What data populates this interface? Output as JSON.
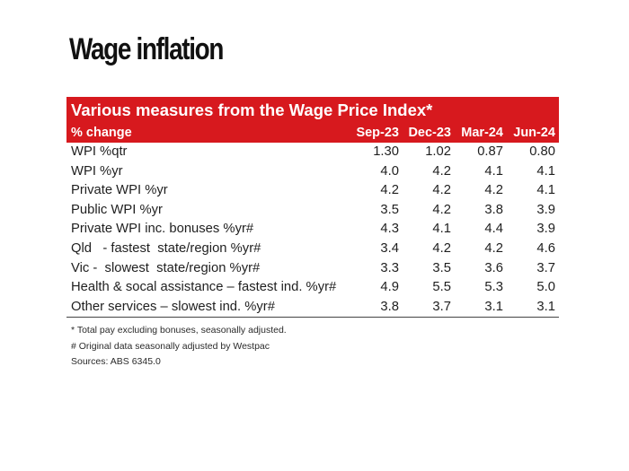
{
  "slide": {
    "title": "Wage inflation"
  },
  "table": {
    "caption": "Various measures from the Wage Price Index*",
    "label_header": "% change",
    "columns": [
      "Sep-23",
      "Dec-23",
      "Mar-24",
      "Jun-24"
    ],
    "rows": [
      {
        "label": "WPI %qtr",
        "values": [
          "1.30",
          "1.02",
          "0.87",
          "0.80"
        ]
      },
      {
        "label": "WPI %yr",
        "values": [
          "4.0",
          "4.2",
          "4.1",
          "4.1"
        ]
      },
      {
        "label": "Private WPI %yr",
        "values": [
          "4.2",
          "4.2",
          "4.2",
          "4.1"
        ]
      },
      {
        "label": "Public WPI %yr",
        "values": [
          "3.5",
          "4.2",
          "3.8",
          "3.9"
        ]
      },
      {
        "label": "Private WPI inc. bonuses %yr#",
        "values": [
          "4.3",
          "4.1",
          "4.4",
          "3.9"
        ]
      },
      {
        "label": "Qld   - fastest  state/region %yr#",
        "values": [
          "3.4",
          "4.2",
          "4.2",
          "4.6"
        ]
      },
      {
        "label": "Vic -  slowest  state/region %yr#",
        "values": [
          "3.3",
          "3.5",
          "3.6",
          "3.7"
        ]
      },
      {
        "label": "Health & socal assistance – fastest ind. %yr#",
        "values": [
          "4.9",
          "5.5",
          "5.3",
          "5.0"
        ]
      },
      {
        "label": "Other services – slowest ind. %yr#",
        "values": [
          "3.8",
          "3.7",
          "3.1",
          "3.1"
        ]
      }
    ],
    "notes": [
      "* Total pay excluding bonuses, seasonally adjusted.",
      "# Original data seasonally adjusted by Westpac",
      "Sources: ABS 6345.0"
    ]
  }
}
